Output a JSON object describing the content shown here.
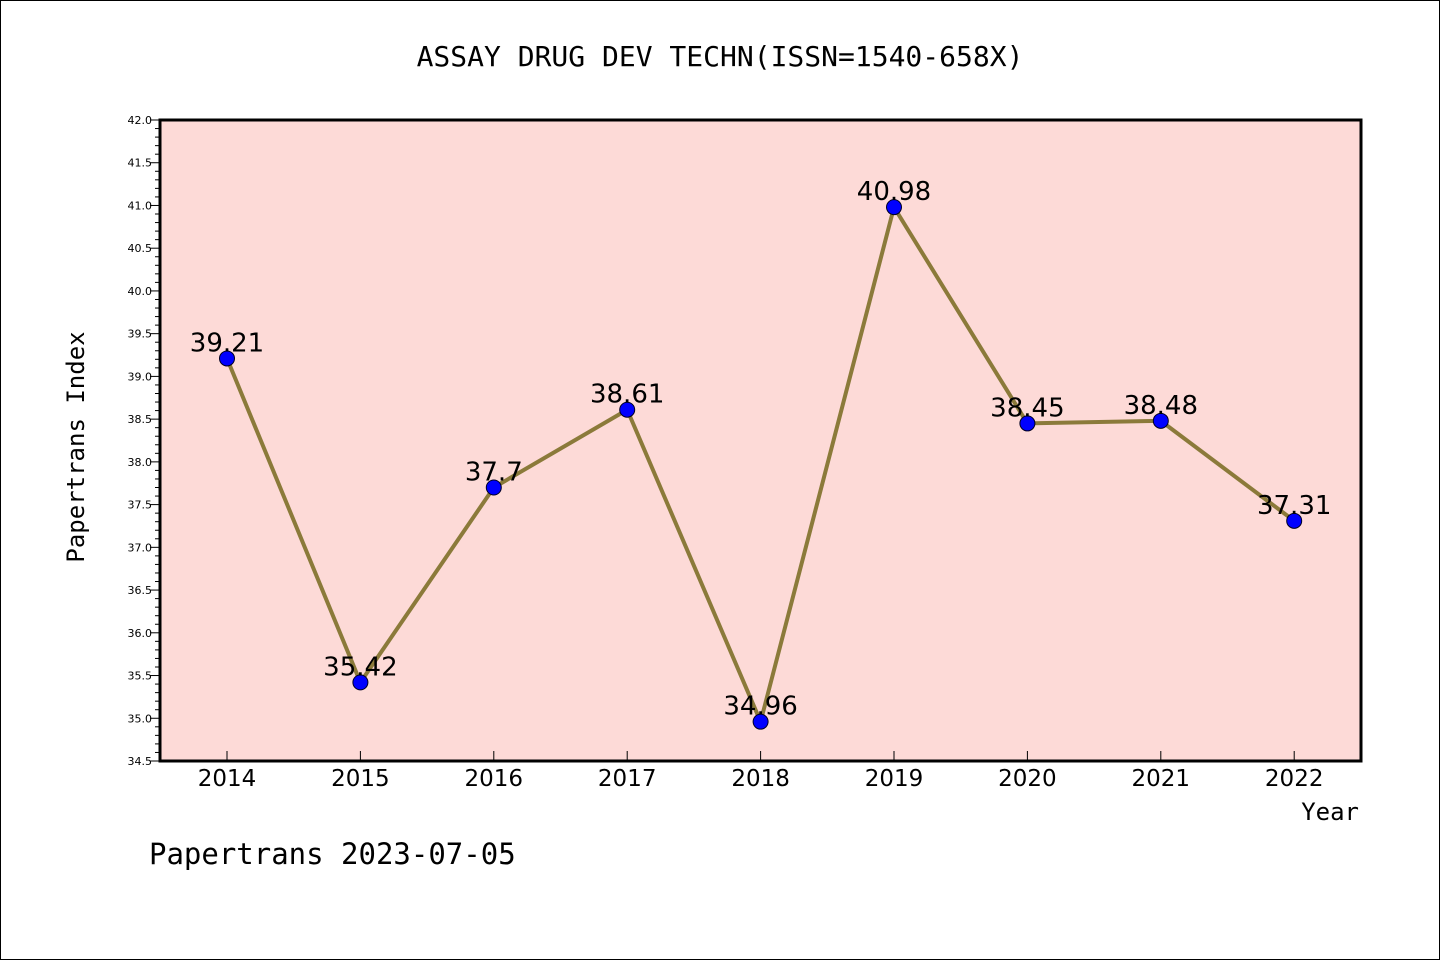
{
  "chart_data": {
    "type": "line",
    "title": "ASSAY DRUG DEV TECHN(ISSN=1540-658X)",
    "xlabel": "Year",
    "ylabel": "Papertrans Index",
    "categories": [
      "2014",
      "2015",
      "2016",
      "2017",
      "2018",
      "2019",
      "2020",
      "2021",
      "2022"
    ],
    "series": [
      {
        "values": [
          39.21,
          35.42,
          37.7,
          38.61,
          34.96,
          40.98,
          38.45,
          38.48,
          37.31
        ],
        "labels": [
          "39.21",
          "35.42",
          "37.7",
          "38.61",
          "34.96",
          "40.98",
          "38.45",
          "38.48",
          "37.31"
        ]
      }
    ],
    "ylim": [
      34.5,
      42.0
    ],
    "yticks": [
      "34.5",
      "35.0",
      "35.5",
      "36.0",
      "36.5",
      "37.0",
      "37.5",
      "38.0",
      "38.5",
      "39.0",
      "39.5",
      "40.0",
      "40.5",
      "41.0",
      "41.5",
      "42.0"
    ],
    "grid": false,
    "colors": {
      "plot_background": "#fddad7",
      "line": "#8b7a3a",
      "marker": "#0000ff"
    }
  },
  "footer": "Papertrans 2023-07-05"
}
